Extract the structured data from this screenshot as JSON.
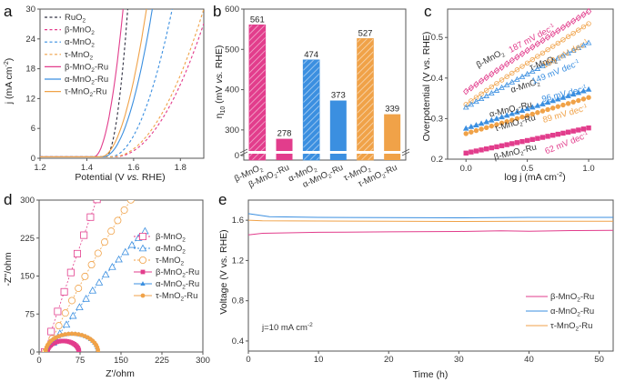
{
  "colors": {
    "beta": "#e23d8c",
    "alpha": "#3b8fe0",
    "tau": "#f0a248",
    "ruo2": "#333344"
  },
  "chart_data": [
    {
      "panel": "a",
      "type": "line",
      "xlabel": "Potential (V vs. RHE)",
      "ylabel": "j (mA cm-2)",
      "xlim": [
        1.2,
        1.9
      ],
      "ylim": [
        0,
        30
      ],
      "xticks": [
        "1.2",
        "1.4",
        "1.6",
        "1.8"
      ],
      "yticks": [
        "0",
        "6",
        "12",
        "18",
        "24",
        "30"
      ],
      "legend_position": "top-left",
      "series": [
        {
          "name": "RuO2",
          "label_main": "RuO",
          "label_sub": "2",
          "label_tail": "",
          "style": "dashed",
          "color_key": "ruo2",
          "onset": 1.48,
          "x_at_30": 1.575
        },
        {
          "name": "β-MnO2",
          "label_main": "β-MnO",
          "label_sub": "2",
          "label_tail": "",
          "style": "dashed",
          "color_key": "beta",
          "onset": 1.52,
          "x_at_30": 1.92
        },
        {
          "name": "α-MnO2",
          "label_main": "α-MnO",
          "label_sub": "2",
          "label_tail": "",
          "style": "dashed",
          "color_key": "alpha",
          "onset": 1.5,
          "x_at_30": 1.765
        },
        {
          "name": "τ-MnO2",
          "label_main": "τ-MnO",
          "label_sub": "2",
          "label_tail": "",
          "style": "dashed",
          "color_key": "tau",
          "onset": 1.51,
          "x_at_30": 1.9
        },
        {
          "name": "β-MnO2-Ru",
          "label_main": "β-MnO",
          "label_sub": "2",
          "label_tail": "-Ru",
          "style": "solid",
          "color_key": "beta",
          "onset": 1.43,
          "x_at_30": 1.555
        },
        {
          "name": "α-MnO2-Ru",
          "label_main": "α-MnO",
          "label_sub": "2",
          "label_tail": "-Ru",
          "style": "solid",
          "color_key": "alpha",
          "onset": 1.47,
          "x_at_30": 1.68
        },
        {
          "name": "τ-MnO2-Ru",
          "label_main": "τ-MnO",
          "label_sub": "2",
          "label_tail": "-Ru",
          "style": "solid",
          "color_key": "tau",
          "onset": 1.46,
          "x_at_30": 1.655
        }
      ]
    },
    {
      "panel": "b",
      "type": "bar",
      "ylabel": "η10 (mV vs. RHE)",
      "ylim": [
        250,
        600
      ],
      "axis_break": true,
      "yticks": [
        "0",
        "300",
        "400",
        "500",
        "600"
      ],
      "categories": [
        "β-MnO2",
        "β-MnO2-Ru",
        "α-MnO2",
        "α-MnO2-Ru",
        "τ-MnO2",
        "τ-MnO2-Ru"
      ],
      "category_labels": [
        {
          "main": "β-MnO",
          "sub": "2",
          "tail": ""
        },
        {
          "main": "β-MnO",
          "sub": "2",
          "tail": "-Ru"
        },
        {
          "main": "α-MnO",
          "sub": "2",
          "tail": ""
        },
        {
          "main": "α-MnO",
          "sub": "2",
          "tail": "-Ru"
        },
        {
          "main": "τ-MnO",
          "sub": "2",
          "tail": ""
        },
        {
          "main": "τ-MnO",
          "sub": "2",
          "tail": "-Ru"
        }
      ],
      "values": [
        561,
        278,
        474,
        373,
        527,
        339
      ],
      "hatched": [
        true,
        false,
        true,
        false,
        true,
        false
      ],
      "color_keys": [
        "beta",
        "beta",
        "alpha",
        "alpha",
        "tau",
        "tau"
      ]
    },
    {
      "panel": "c",
      "type": "scatter",
      "xlabel": "log j (mA cm-2)",
      "ylabel": "Overpotential (V vs. RHE)",
      "xlim": [
        -0.15,
        1.2
      ],
      "ylim": [
        0.2,
        0.57
      ],
      "xticks": [
        "0.0",
        "0.5",
        "1.0"
      ],
      "yticks": [
        "0.2",
        "0.3",
        "0.4",
        "0.5"
      ],
      "series": [
        {
          "name": "β-MnO2",
          "slope_label": "187 mV dec-1",
          "slope": 0.187,
          "y0": 0.367,
          "color_key": "beta",
          "marker": "diamond-open"
        },
        {
          "name": "τ-MnO2",
          "slope_label": "189 mV dec-1",
          "slope": 0.189,
          "y0": 0.335,
          "color_key": "tau",
          "marker": "circle-open"
        },
        {
          "name": "α-MnO2",
          "slope_label": "149 mV dec-1",
          "slope": 0.149,
          "y0": 0.328,
          "color_key": "alpha",
          "marker": "triangle-open"
        },
        {
          "name": "α-MnO2-Ru",
          "slope_label": "96 mV dec-1",
          "slope": 0.096,
          "y0": 0.276,
          "color_key": "alpha",
          "marker": "triangle-filled"
        },
        {
          "name": "τ-MnO2-Ru",
          "slope_label": "89 mV dec-1",
          "slope": 0.089,
          "y0": 0.263,
          "color_key": "tau",
          "marker": "circle-filled"
        },
        {
          "name": "β-MnO2-Ru",
          "slope_label": "62 mV dec-1",
          "slope": 0.062,
          "y0": 0.215,
          "color_key": "beta",
          "marker": "square-filled"
        }
      ]
    },
    {
      "panel": "d",
      "type": "scatter",
      "xlabel": "Z'/ohm",
      "ylabel": "-Z''/ohm",
      "xlim": [
        0,
        300
      ],
      "ylim": [
        0,
        300
      ],
      "xticks": [
        "0",
        "75",
        "150",
        "225",
        "300"
      ],
      "yticks": [
        "0",
        "75",
        "150",
        "225",
        "300"
      ],
      "legend_position": "center-right",
      "series": [
        {
          "name": "β-MnO2",
          "label_main": "β-MnO",
          "label_sub": "2",
          "label_tail": "",
          "color_key": "beta",
          "marker": "square-open",
          "kind": "line",
          "rs": 10,
          "slope": 3.4
        },
        {
          "name": "α-MnO2",
          "label_main": "α-MnO",
          "label_sub": "2",
          "label_tail": "",
          "color_key": "alpha",
          "marker": "triangle-open",
          "kind": "line",
          "rs": 14,
          "slope": 1.55
        },
        {
          "name": "τ-MnO2",
          "label_main": "τ-MnO",
          "label_sub": "2",
          "label_tail": "",
          "color_key": "tau",
          "marker": "circle-open",
          "kind": "line",
          "rs": 12,
          "slope": 2.2
        },
        {
          "name": "β-MnO2-Ru",
          "label_main": "β-MnO",
          "label_sub": "2",
          "label_tail": "-Ru",
          "color_key": "beta",
          "marker": "square-filled",
          "kind": "arc",
          "rs": 15,
          "rct": 58
        },
        {
          "name": "α-MnO2-Ru",
          "label_main": "α-MnO",
          "label_sub": "2",
          "label_tail": "-Ru",
          "color_key": "alpha",
          "marker": "triangle-filled",
          "kind": "arc",
          "rs": 12,
          "rct": 96
        },
        {
          "name": "τ-MnO2-Ru",
          "label_main": "τ-MnO",
          "label_sub": "2",
          "label_tail": "-Ru",
          "color_key": "tau",
          "marker": "circle-filled",
          "kind": "arc",
          "rs": 12,
          "rct": 96
        }
      ]
    },
    {
      "panel": "e",
      "type": "line",
      "xlabel": "Time (h)",
      "ylabel": "Voltage (V vs. RHE)",
      "xlim": [
        0,
        52
      ],
      "ylim": [
        0.3,
        1.8
      ],
      "xticks": [
        "0",
        "10",
        "20",
        "30",
        "40",
        "50"
      ],
      "yticks": [
        "0.4",
        "0.8",
        "1.2",
        "1.6"
      ],
      "annotation": "j=10 mA cm-2",
      "legend_position": "bottom-right",
      "series": [
        {
          "name": "β-MnO2-Ru",
          "label_main": "β-MnO",
          "label_sub": "2",
          "label_tail": "-Ru",
          "color_key": "beta",
          "x": [
            0,
            2,
            10,
            20,
            30,
            36,
            40,
            46,
            52
          ],
          "y": [
            1.455,
            1.47,
            1.48,
            1.485,
            1.488,
            1.495,
            1.49,
            1.497,
            1.5
          ]
        },
        {
          "name": "α-MnO2-Ru",
          "label_main": "α-MnO",
          "label_sub": "2",
          "label_tail": "-Ru",
          "color_key": "alpha",
          "x": [
            0,
            1,
            3,
            10,
            20,
            30,
            40,
            52
          ],
          "y": [
            1.665,
            1.655,
            1.635,
            1.628,
            1.626,
            1.624,
            1.628,
            1.628
          ]
        },
        {
          "name": "τ-MnO2-Ru",
          "label_main": "τ-MnO",
          "label_sub": "2",
          "label_tail": "-Ru",
          "color_key": "tau",
          "x": [
            0,
            2,
            10,
            20,
            30,
            40,
            52
          ],
          "y": [
            1.6,
            1.595,
            1.592,
            1.59,
            1.588,
            1.59,
            1.59
          ]
        }
      ]
    }
  ],
  "panels": {
    "a": {
      "letter": "a"
    },
    "b": {
      "letter": "b"
    },
    "c": {
      "letter": "c"
    },
    "d": {
      "letter": "d"
    },
    "e": {
      "letter": "e"
    }
  },
  "text": {
    "a_xlabel_pre": "Potential (V ",
    "a_xlabel_it": "vs.",
    "a_xlabel_post": " RHE)",
    "a_ylabel_main": "j (mA cm",
    "a_ylabel_sup": "-2",
    "a_ylabel_end": ")",
    "b_ylabel_eta": "η",
    "b_ylabel_sub": "10",
    "b_ylabel_pre": " (mV ",
    "b_ylabel_it": "vs.",
    "b_ylabel_post": " RHE)",
    "c_xlabel_main": "log j (mA cm",
    "c_xlabel_sup": "-2",
    "c_xlabel_end": ")",
    "c_ylabel": "Overpotential (V vs. RHE)",
    "d_xlabel": "Z'/ohm",
    "d_ylabel": "-Z''/ohm",
    "e_xlabel": "Time (h)",
    "e_ylabel": "Voltage (V vs. RHE)",
    "e_annot_main": "j=10 mA cm",
    "e_annot_sup": "-2"
  }
}
